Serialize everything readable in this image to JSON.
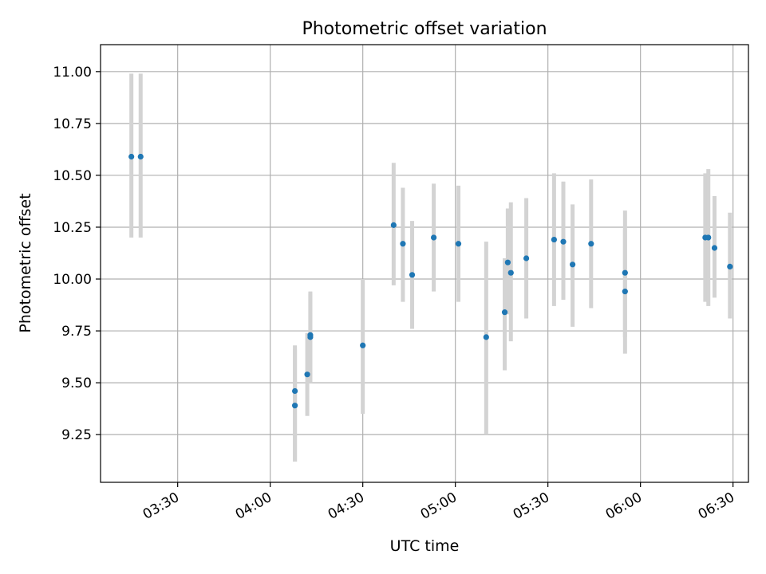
{
  "chart_data": {
    "type": "scatter",
    "title": "Photometric offset variation",
    "xlabel": "UTC time",
    "ylabel": "Photometric offset",
    "xlim": [
      "03:05",
      "06:35"
    ],
    "ylim": [
      9.02,
      11.13
    ],
    "x_ticks": [
      "03:30",
      "04:00",
      "04:30",
      "05:00",
      "05:30",
      "06:00",
      "06:30"
    ],
    "y_ticks": [
      9.25,
      9.5,
      9.75,
      10.0,
      10.25,
      10.5,
      10.75,
      11.0
    ],
    "y_tick_labels": [
      "9.25",
      "9.50",
      "9.75",
      "10.00",
      "10.25",
      "10.50",
      "10.75",
      "11.00"
    ],
    "grid": true,
    "marker_color": "#1f77b4",
    "errorbar_color": "#d3d3d3",
    "points": [
      {
        "x": "03:15",
        "y": 10.59,
        "lo": 10.2,
        "hi": 10.99
      },
      {
        "x": "03:18",
        "y": 10.59,
        "lo": 10.2,
        "hi": 10.99
      },
      {
        "x": "04:08",
        "y": 9.46,
        "lo": 9.12,
        "hi": 9.68
      },
      {
        "x": "04:08",
        "y": 9.39,
        "lo": 9.12,
        "hi": 9.66
      },
      {
        "x": "04:12",
        "y": 9.54,
        "lo": 9.34,
        "hi": 9.74
      },
      {
        "x": "04:13",
        "y": 9.73,
        "lo": 9.5,
        "hi": 9.94
      },
      {
        "x": "04:13",
        "y": 9.72,
        "lo": 9.5,
        "hi": 9.93
      },
      {
        "x": "04:30",
        "y": 9.68,
        "lo": 9.35,
        "hi": 10.0
      },
      {
        "x": "04:40",
        "y": 10.26,
        "lo": 9.97,
        "hi": 10.56
      },
      {
        "x": "04:43",
        "y": 10.17,
        "lo": 9.89,
        "hi": 10.44
      },
      {
        "x": "04:46",
        "y": 10.02,
        "lo": 9.76,
        "hi": 10.28
      },
      {
        "x": "04:53",
        "y": 10.2,
        "lo": 9.94,
        "hi": 10.46
      },
      {
        "x": "05:01",
        "y": 10.17,
        "lo": 9.89,
        "hi": 10.45
      },
      {
        "x": "05:10",
        "y": 9.72,
        "lo": 9.25,
        "hi": 10.18
      },
      {
        "x": "05:16",
        "y": 9.84,
        "lo": 9.56,
        "hi": 10.1
      },
      {
        "x": "05:17",
        "y": 10.08,
        "lo": 9.83,
        "hi": 10.34
      },
      {
        "x": "05:18",
        "y": 10.03,
        "lo": 9.7,
        "hi": 10.37
      },
      {
        "x": "05:23",
        "y": 10.1,
        "lo": 9.81,
        "hi": 10.39
      },
      {
        "x": "05:32",
        "y": 10.19,
        "lo": 9.87,
        "hi": 10.51
      },
      {
        "x": "05:35",
        "y": 10.18,
        "lo": 9.9,
        "hi": 10.47
      },
      {
        "x": "05:38",
        "y": 10.07,
        "lo": 9.77,
        "hi": 10.36
      },
      {
        "x": "05:44",
        "y": 10.17,
        "lo": 9.86,
        "hi": 10.48
      },
      {
        "x": "05:55",
        "y": 10.03,
        "lo": 9.72,
        "hi": 10.33
      },
      {
        "x": "05:55",
        "y": 9.94,
        "lo": 9.64,
        "hi": 10.24
      },
      {
        "x": "06:21",
        "y": 10.2,
        "lo": 9.89,
        "hi": 10.51
      },
      {
        "x": "06:22",
        "y": 10.2,
        "lo": 9.87,
        "hi": 10.53
      },
      {
        "x": "06:24",
        "y": 10.15,
        "lo": 9.91,
        "hi": 10.4
      },
      {
        "x": "06:29",
        "y": 10.06,
        "lo": 9.81,
        "hi": 10.32
      }
    ]
  }
}
